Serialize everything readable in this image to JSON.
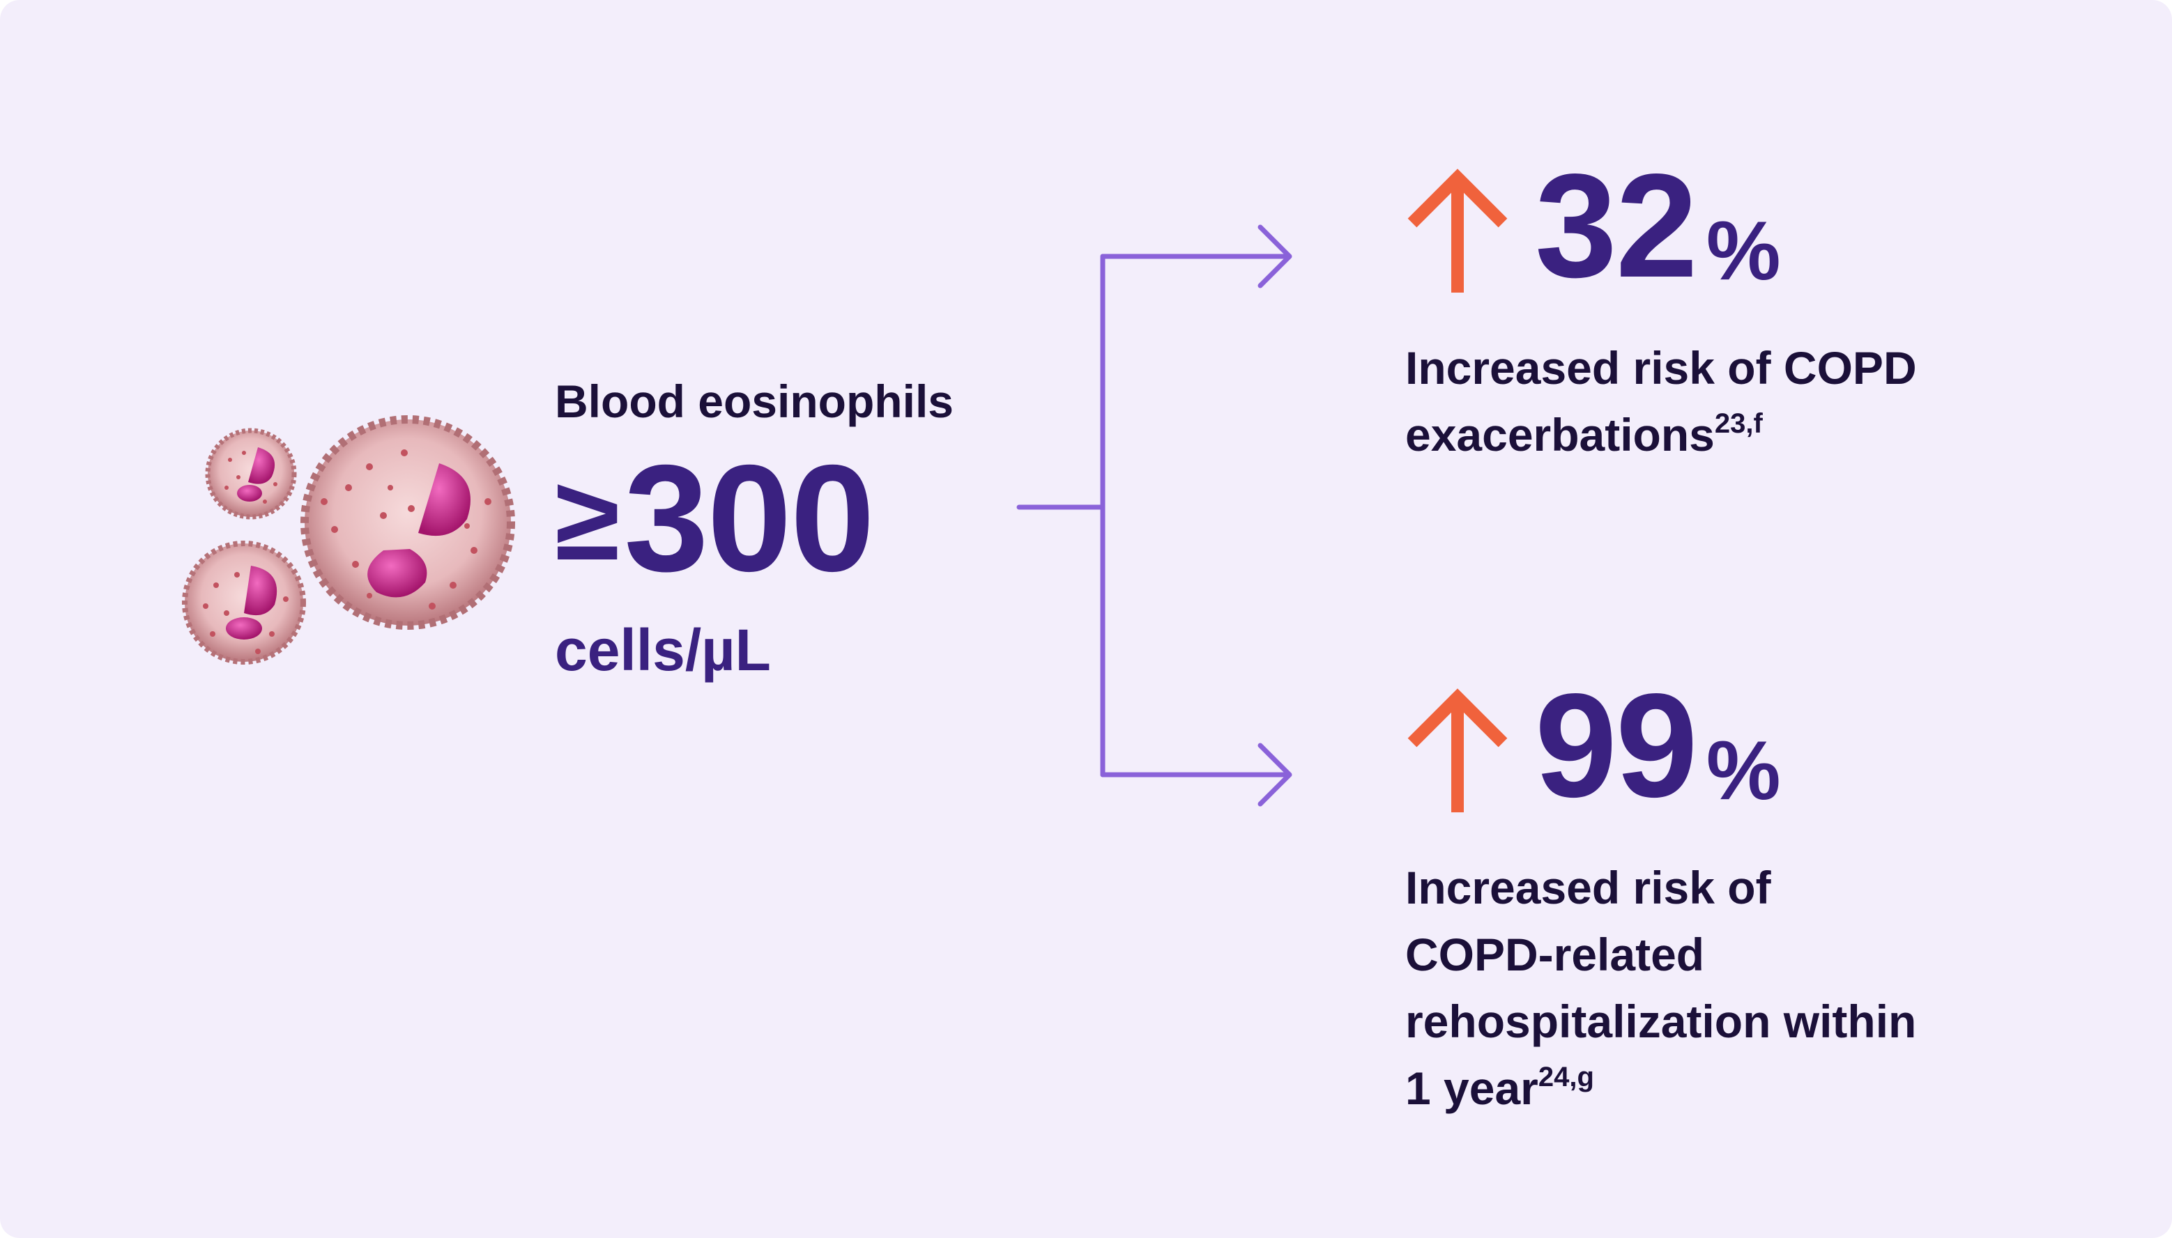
{
  "colors": {
    "background": "#F3EEFB",
    "primary_purple": "#3A2180",
    "text_dark": "#1B1039",
    "connector": "#8A62D9",
    "arrow_up": "#F0623C",
    "cell_body": "#C98A8F",
    "cell_nucleus": "#D0268E"
  },
  "left": {
    "label": "Blood eosinophils",
    "symbol": "≥",
    "value": "300",
    "unit": "cells/µL",
    "icon": "eosinophil-cells-illustration"
  },
  "stats": [
    {
      "icon": "arrow-up-icon",
      "value": "32",
      "percent": "%",
      "line1": "Increased risk of COPD",
      "line2": "exacerbations",
      "sup": "23,f"
    },
    {
      "icon": "arrow-up-icon",
      "value": "99",
      "percent": "%",
      "line1": "Increased risk of",
      "line2": "COPD-related",
      "line3": "rehospitalization within",
      "line4": "1 year",
      "sup": "24,g"
    }
  ]
}
